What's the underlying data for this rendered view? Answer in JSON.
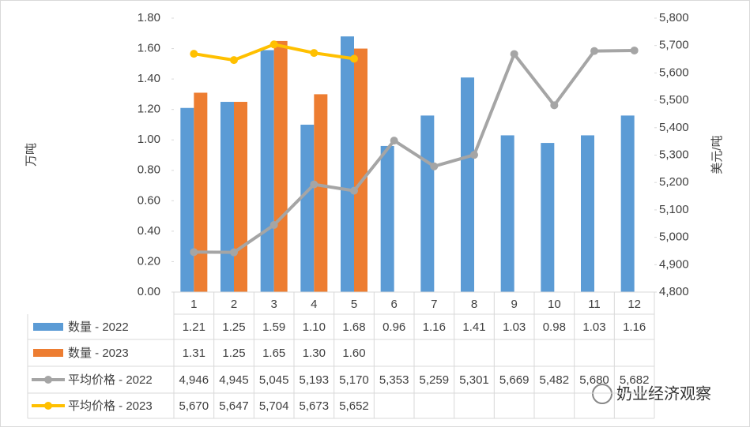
{
  "chart_data": {
    "type": "bar-line",
    "categories": [
      "1",
      "2",
      "3",
      "4",
      "5",
      "6",
      "7",
      "8",
      "9",
      "10",
      "11",
      "12"
    ],
    "series": [
      {
        "name": "数量 - 2022",
        "type": "bar",
        "color": "#5b9bd5",
        "axis": "y",
        "values": [
          1.21,
          1.25,
          1.59,
          1.1,
          1.68,
          0.96,
          1.16,
          1.41,
          1.03,
          0.98,
          1.03,
          1.16
        ],
        "value_labels": [
          "1.21",
          "1.25",
          "1.59",
          "1.10",
          "1.68",
          "0.96",
          "1.16",
          "1.41",
          "1.03",
          "0.98",
          "1.03",
          "1.16"
        ]
      },
      {
        "name": "数量 - 2023",
        "type": "bar",
        "color": "#ed7d31",
        "axis": "y",
        "values": [
          1.31,
          1.25,
          1.65,
          1.3,
          1.6,
          null,
          null,
          null,
          null,
          null,
          null,
          null
        ],
        "value_labels": [
          "1.31",
          "1.25",
          "1.65",
          "1.30",
          "1.60",
          null,
          null,
          null,
          null,
          null,
          null,
          null
        ]
      },
      {
        "name": "平均价格 - 2022",
        "type": "line",
        "color": "#a5a5a5",
        "axis": "y2",
        "values": [
          4946,
          4945,
          5045,
          5193,
          5170,
          5353,
          5259,
          5301,
          5669,
          5482,
          5680,
          5682
        ],
        "value_labels": [
          "4,946",
          "4,945",
          "5,045",
          "5,193",
          "5,170",
          "5,353",
          "5,259",
          "5,301",
          "5,669",
          "5,482",
          "5,680",
          "5,682"
        ]
      },
      {
        "name": "平均价格 - 2023",
        "type": "line",
        "color": "#ffc000",
        "axis": "y2",
        "values": [
          5670,
          5647,
          5704,
          5673,
          5652,
          null,
          null,
          null,
          null,
          null,
          null,
          null
        ],
        "value_labels": [
          "5,670",
          "5,647",
          "5,704",
          "5,673",
          "5,652",
          null,
          null,
          null,
          null,
          null,
          null,
          null
        ]
      }
    ],
    "ylabel": "万吨",
    "y2label": "美元/吨",
    "ylim": [
      0,
      1.8
    ],
    "yticks": [
      {
        "value": 0,
        "label": "0.00"
      },
      {
        "value": 0.2,
        "label": "0.20"
      },
      {
        "value": 0.4,
        "label": "0.40"
      },
      {
        "value": 0.6,
        "label": "0.60"
      },
      {
        "value": 0.8,
        "label": "0.80"
      },
      {
        "value": 1,
        "label": "1.00"
      },
      {
        "value": 1.2,
        "label": "1.20"
      },
      {
        "value": 1.4,
        "label": "1.40"
      },
      {
        "value": 1.6,
        "label": "1.60"
      },
      {
        "value": 1.8,
        "label": "1.80"
      }
    ],
    "y2lim": [
      4800,
      5800
    ],
    "y2ticks": [
      {
        "value": 4800,
        "label": "4,800"
      },
      {
        "value": 4900,
        "label": "4,900"
      },
      {
        "value": 5000,
        "label": "5,000"
      },
      {
        "value": 5100,
        "label": "5,100"
      },
      {
        "value": 5200,
        "label": "5,200"
      },
      {
        "value": 5300,
        "label": "5,300"
      },
      {
        "value": 5400,
        "label": "5,400"
      },
      {
        "value": 5500,
        "label": "5,500"
      },
      {
        "value": 5600,
        "label": "5,600"
      },
      {
        "value": 5700,
        "label": "5,700"
      },
      {
        "value": 5800,
        "label": "5,800"
      }
    ],
    "grid": false,
    "data_table": true,
    "annotation": "奶业经济观察"
  }
}
